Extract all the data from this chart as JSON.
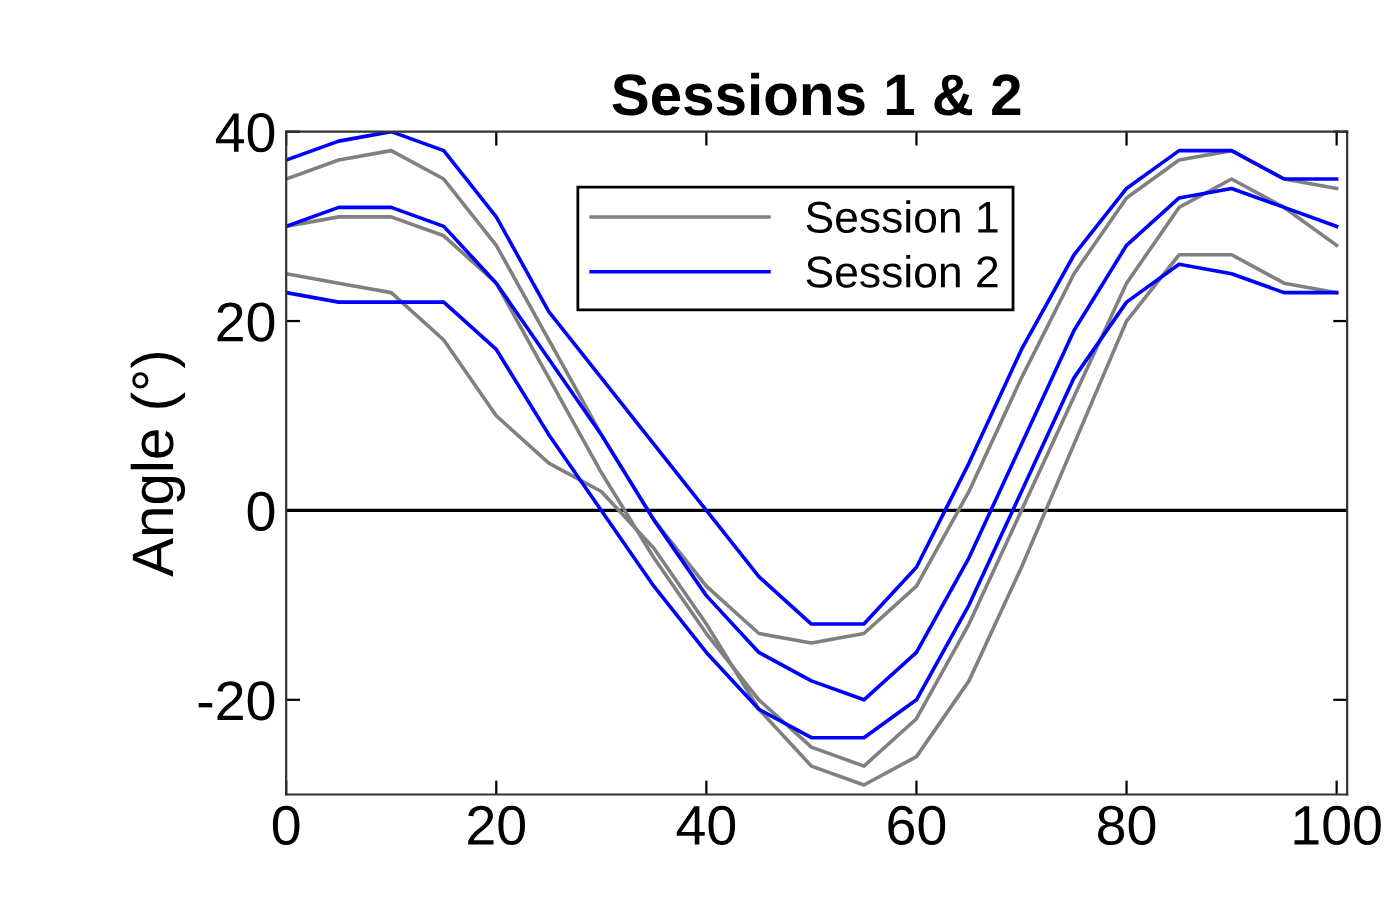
{
  "chart_data": {
    "type": "line",
    "title": "Sessions 1 & 2",
    "ylabel": "Angle (°)",
    "x": [
      0,
      5,
      10,
      15,
      20,
      25,
      30,
      35,
      40,
      45,
      50,
      55,
      60,
      65,
      70,
      75,
      80,
      85,
      90,
      95,
      100
    ],
    "series": [
      {
        "name": "Session 1",
        "color": "#808080",
        "values": [
          30,
          31,
          31,
          29,
          24,
          14,
          4,
          -5,
          -13,
          -20,
          -25,
          -27,
          -22,
          -12,
          0,
          12,
          24,
          32,
          35,
          32,
          28
        ]
      },
      {
        "color": "#808080",
        "values": [
          35,
          37,
          38,
          35,
          28,
          18,
          8,
          -1,
          -8,
          -13,
          -14,
          -13,
          -8,
          2,
          14,
          25,
          33,
          37,
          38,
          35,
          34
        ]
      },
      {
        "color": "#808080",
        "values": [
          25,
          24,
          23,
          18,
          10,
          5,
          2,
          -4,
          -12,
          -21,
          -27,
          -29,
          -26,
          -18,
          -6,
          7,
          20,
          27,
          27,
          24,
          23
        ]
      },
      {
        "name": "Session 2",
        "color": "#0000ff",
        "values": [
          30,
          32,
          32,
          30,
          24,
          16,
          8,
          -1,
          -9,
          -15,
          -18,
          -20,
          -15,
          -5,
          7,
          19,
          28,
          33,
          34,
          32,
          30
        ]
      },
      {
        "color": "#0000ff",
        "values": [
          37,
          39,
          40,
          38,
          31,
          21,
          14,
          7,
          0,
          -7,
          -12,
          -12,
          -6,
          5,
          17,
          27,
          34,
          38,
          38,
          35,
          35
        ]
      },
      {
        "color": "#0000ff",
        "values": [
          23,
          22,
          22,
          22,
          17,
          8,
          0,
          -8,
          -15,
          -21,
          -24,
          -24,
          -20,
          -10,
          2,
          14,
          22,
          26,
          25,
          23,
          23
        ]
      }
    ],
    "xlim": [
      0,
      101
    ],
    "ylim": [
      -30,
      40
    ],
    "xticks": [
      0,
      20,
      40,
      60,
      80,
      100
    ],
    "yticks": [
      -20,
      0,
      20,
      40
    ],
    "ref_lines": [
      {
        "axis": "y",
        "value": 0,
        "color": "#000000"
      }
    ],
    "legend": "top",
    "grid": false,
    "marker": "none",
    "line_style": "solid"
  }
}
